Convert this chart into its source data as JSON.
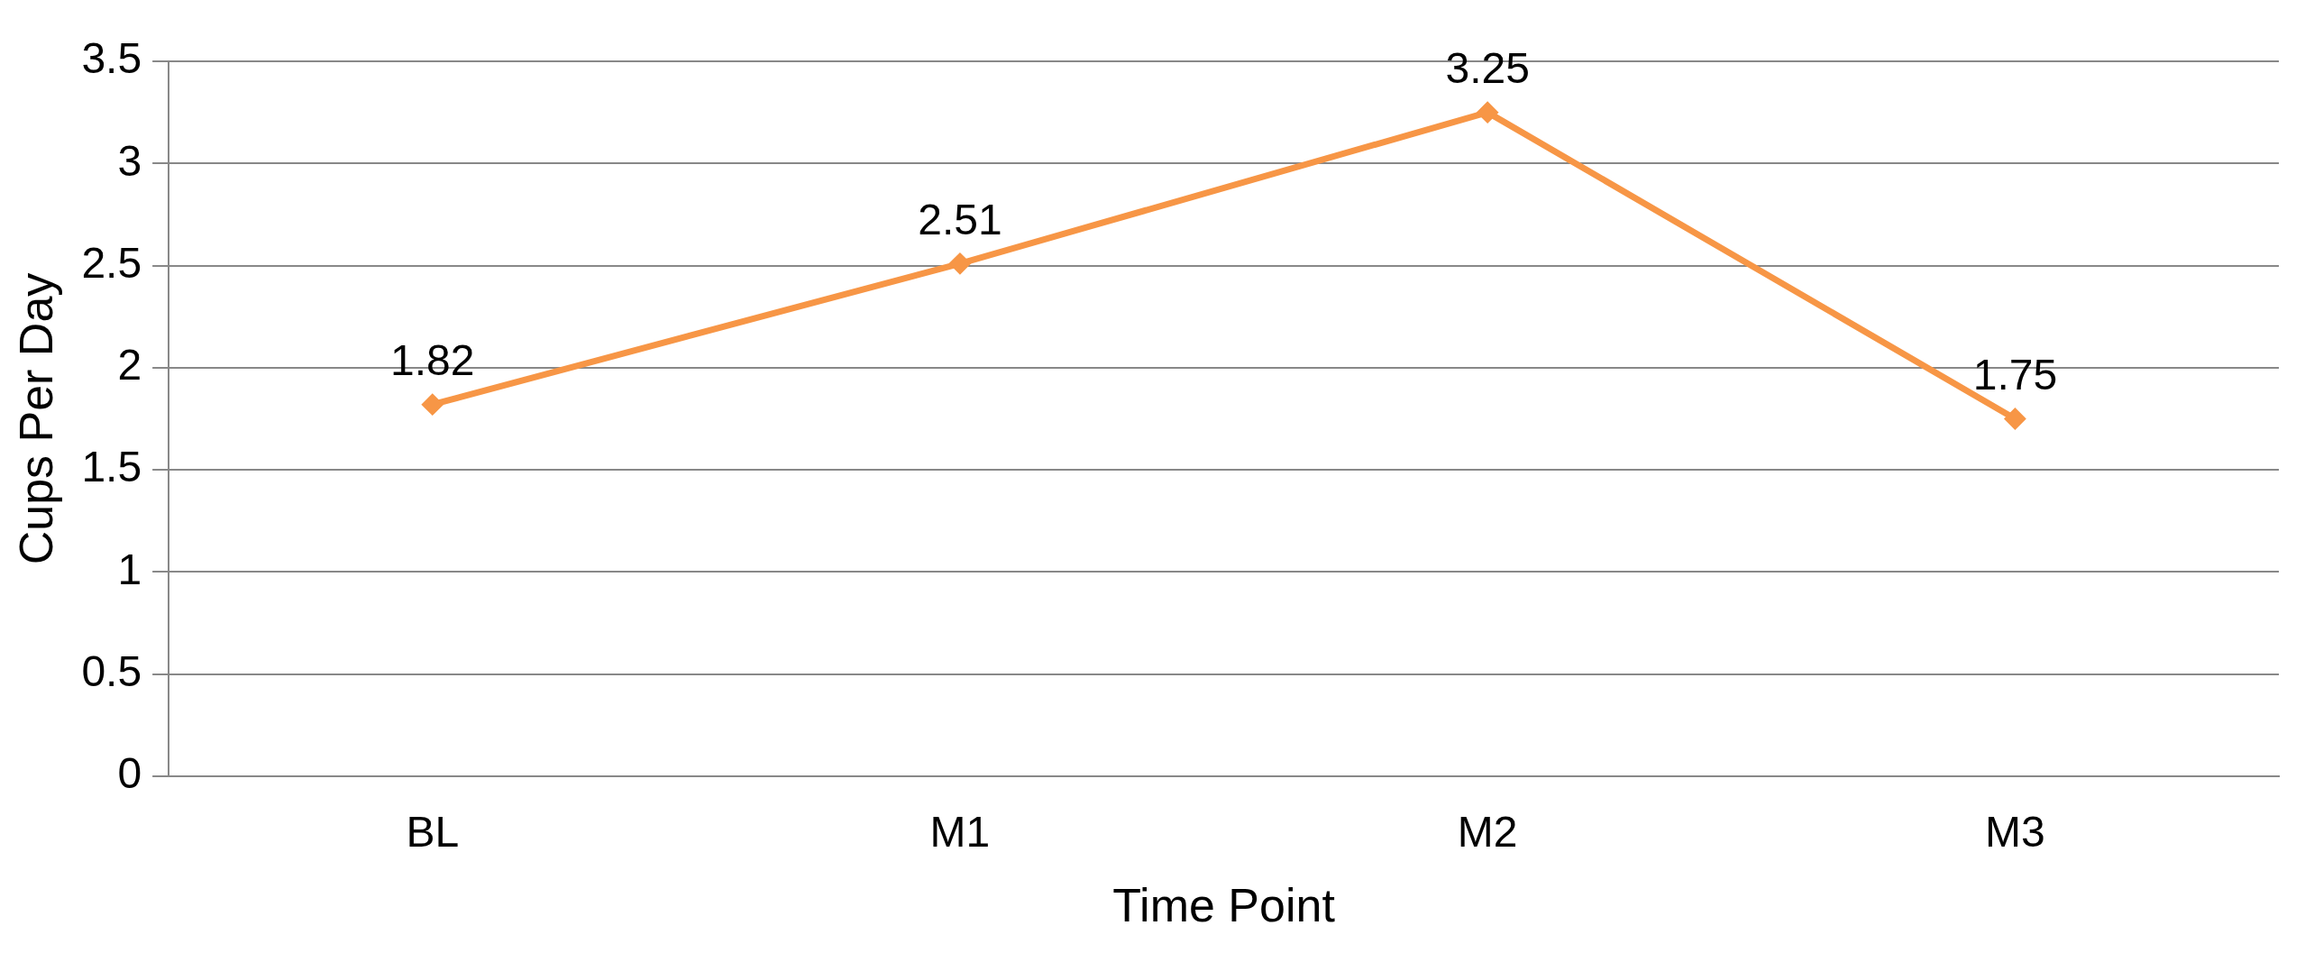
{
  "chart_data": {
    "type": "line",
    "xlabel": "Time Point",
    "ylabel": "Cups Per Day",
    "categories": [
      "BL",
      "M1",
      "M2",
      "M3"
    ],
    "series": [
      {
        "color": "#f79646",
        "values": [
          1.82,
          2.51,
          3.25,
          1.75
        ]
      }
    ],
    "ylim": [
      0,
      3.5
    ],
    "yticks": [
      0,
      0.5,
      1,
      1.5,
      2,
      2.5,
      3,
      3.5
    ],
    "grid": "y",
    "marker": "diamond",
    "line_style": "solid",
    "data_labels": true,
    "legend": false
  }
}
